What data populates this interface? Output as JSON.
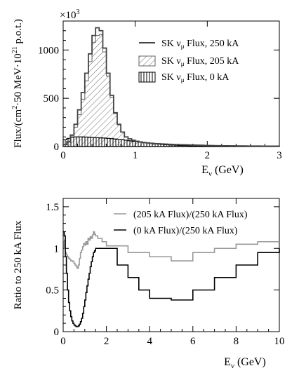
{
  "chart_data": [
    {
      "type": "histogram",
      "multiplier_label": "×10",
      "multiplier_exp": "3",
      "ylabel_main": "Flux/(cm",
      "ylabel_sup1": "2",
      "ylabel_mid": "·50 MeV·10",
      "ylabel_sup2": "21",
      "ylabel_end": " p.o.t.)",
      "xlabel_main": "E",
      "xlabel_sub": "ν",
      "xlabel_unit": " (GeV)",
      "xlim": [
        0,
        3
      ],
      "ylim": [
        0,
        1300
      ],
      "xticks": [
        "0",
        "1",
        "2",
        "3"
      ],
      "yticks": [
        "0",
        "500",
        "1000"
      ],
      "bin_width": 0.05,
      "legend": [
        {
          "pre": "SK ν",
          "sub": "μ",
          "post": " Flux, 250 kA",
          "style": "line"
        },
        {
          "pre": "SK ν",
          "sub": "μ",
          "post": " Flux, 205 kA",
          "style": "diagonal"
        },
        {
          "pre": "SK ν",
          "sub": "μ",
          "post": " Flux, 0 kA",
          "style": "vertical"
        }
      ],
      "series": [
        {
          "name": "SK νμ Flux, 250 kA",
          "values": [
            20,
            50,
            120,
            230,
            380,
            560,
            760,
            960,
            1150,
            1230,
            1200,
            1020,
            760,
            530,
            350,
            230,
            150,
            100,
            80,
            65,
            55,
            48,
            42,
            38,
            34,
            31,
            29,
            27,
            25,
            23,
            22,
            20,
            19,
            18,
            17,
            16,
            15,
            14,
            13,
            12,
            11,
            10,
            9,
            9,
            8,
            8,
            7,
            7,
            6,
            6,
            6,
            5,
            5,
            5,
            5,
            4,
            4,
            4,
            4,
            4
          ]
        },
        {
          "name": "SK νμ Flux, 205 kA",
          "values": [
            18,
            45,
            110,
            200,
            330,
            490,
            680,
            880,
            1080,
            1150,
            1160,
            980,
            730,
            510,
            340,
            225,
            150,
            100,
            80,
            66,
            57,
            50,
            44,
            39,
            35,
            32,
            30,
            28,
            26,
            24,
            23,
            21,
            20,
            19,
            18,
            17,
            16,
            15,
            14,
            13,
            12,
            11,
            10,
            10,
            9,
            9,
            8,
            8,
            7,
            7,
            6,
            6,
            6,
            5,
            5,
            5,
            5,
            4,
            4,
            4
          ]
        },
        {
          "name": "SK νμ Flux, 0 kA",
          "values": [
            70,
            85,
            95,
            100,
            100,
            100,
            98,
            96,
            94,
            92,
            90,
            88,
            85,
            82,
            78,
            74,
            70,
            65,
            60,
            55,
            50,
            45,
            40,
            36,
            32,
            28,
            25,
            22,
            19,
            17,
            15,
            13,
            12,
            11,
            10,
            9,
            8,
            8,
            7,
            7,
            6,
            6,
            5,
            5,
            5,
            4,
            4,
            4,
            4,
            3,
            3,
            3,
            3,
            3,
            3,
            3,
            3,
            3,
            3,
            3
          ]
        }
      ]
    },
    {
      "type": "line",
      "ylabel": "Ratio to 250 kA Flux",
      "xlabel_main": "E",
      "xlabel_sub": "ν",
      "xlabel_unit": " (GeV)",
      "xlim": [
        0,
        10
      ],
      "ylim": [
        0,
        1.6
      ],
      "xticks": [
        "0",
        "2",
        "4",
        "6",
        "8",
        "10"
      ],
      "yticks": [
        "0",
        "0.5",
        "1",
        "1.5"
      ],
      "legend": [
        {
          "text": "(205 kA Flux)/(250 kA Flux)",
          "color": "#999999"
        },
        {
          "text": "(0 kA Flux)/(250 kA Flux)",
          "color": "#000000"
        }
      ],
      "series": [
        {
          "name": "(205 kA Flux)/(250 kA Flux)",
          "color": "#999999",
          "x": [
            0,
            0.05,
            0.1,
            0.15,
            0.2,
            0.25,
            0.3,
            0.35,
            0.4,
            0.45,
            0.5,
            0.55,
            0.6,
            0.65,
            0.7,
            0.75,
            0.8,
            0.85,
            0.9,
            0.95,
            1.0,
            1.05,
            1.1,
            1.15,
            1.2,
            1.25,
            1.3,
            1.35,
            1.4,
            1.45,
            1.5,
            1.6,
            1.8,
            2.0,
            3.0,
            4.0,
            5.0,
            6.0,
            7.0,
            8.0,
            9.0,
            10.0
          ],
          "y": [
            1.1,
            1.0,
            0.95,
            0.92,
            0.9,
            0.88,
            0.87,
            0.85,
            0.85,
            0.84,
            0.82,
            0.8,
            0.78,
            0.76,
            0.8,
            0.88,
            0.95,
            0.98,
            1.02,
            1.06,
            1.04,
            1.08,
            1.05,
            1.12,
            1.1,
            1.14,
            1.12,
            1.16,
            1.2,
            1.17,
            1.15,
            1.12,
            1.08,
            1.03,
            0.95,
            0.9,
            0.85,
            0.95,
            1.0,
            1.05,
            1.08,
            1.08
          ]
        },
        {
          "name": "(0 kA Flux)/(250 kA Flux)",
          "color": "#000000",
          "x": [
            0,
            0.05,
            0.1,
            0.15,
            0.2,
            0.25,
            0.3,
            0.35,
            0.4,
            0.45,
            0.5,
            0.55,
            0.6,
            0.65,
            0.7,
            0.75,
            0.8,
            0.85,
            0.9,
            0.95,
            1.0,
            1.05,
            1.1,
            1.15,
            1.2,
            1.25,
            1.3,
            1.35,
            1.4,
            1.45,
            1.5,
            2.0,
            2.5,
            3.0,
            3.5,
            4.0,
            5.0,
            6.0,
            7.0,
            8.0,
            9.0,
            10.0
          ],
          "y": [
            1.2,
            1.15,
            0.9,
            0.7,
            0.5,
            0.35,
            0.25,
            0.18,
            0.13,
            0.1,
            0.08,
            0.07,
            0.06,
            0.06,
            0.07,
            0.09,
            0.12,
            0.16,
            0.22,
            0.3,
            0.38,
            0.47,
            0.55,
            0.63,
            0.7,
            0.78,
            0.84,
            0.9,
            0.95,
            0.97,
            1.0,
            1.0,
            0.8,
            0.65,
            0.5,
            0.4,
            0.38,
            0.5,
            0.65,
            0.8,
            0.95,
            1.0
          ]
        }
      ]
    }
  ]
}
